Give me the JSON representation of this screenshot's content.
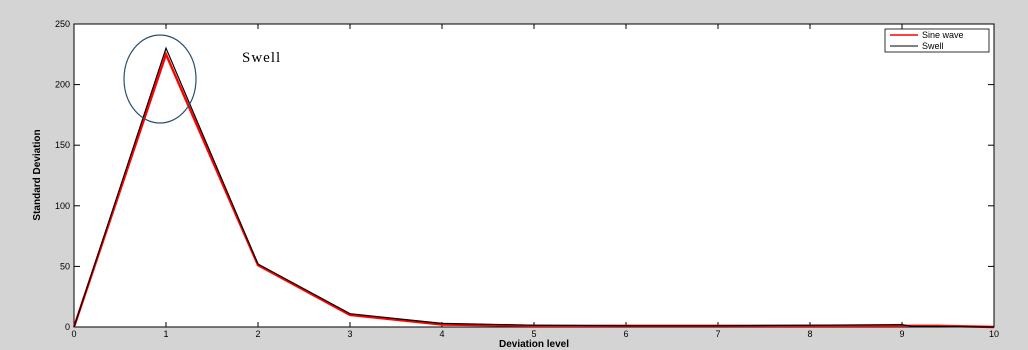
{
  "chart_data": {
    "type": "line",
    "xlabel": "Deviation level",
    "ylabel": "Standard Deviation",
    "xlim": [
      0,
      10
    ],
    "ylim": [
      0,
      250
    ],
    "xticks": [
      0,
      1,
      2,
      3,
      4,
      5,
      6,
      7,
      8,
      9,
      10
    ],
    "yticks": [
      0,
      50,
      100,
      150,
      200,
      250
    ],
    "grid": false,
    "legend_position": "top-right",
    "annotation": "Swell",
    "series": [
      {
        "name": "Sine wave",
        "color": "#ff0000",
        "x": [
          0,
          1,
          2,
          3,
          4,
          5,
          6,
          7,
          8,
          9,
          9.4,
          10
        ],
        "y": [
          0,
          225,
          51,
          10,
          2,
          1,
          1,
          1,
          1,
          1,
          1,
          0
        ]
      },
      {
        "name": "Swell",
        "color": "#000000",
        "x": [
          0,
          1,
          2,
          3,
          4,
          5,
          6,
          7,
          8,
          9,
          9.1,
          10
        ],
        "y": [
          0,
          230,
          52,
          11,
          3,
          1.5,
          1,
          1,
          1.5,
          2,
          0.5,
          0
        ]
      }
    ]
  }
}
